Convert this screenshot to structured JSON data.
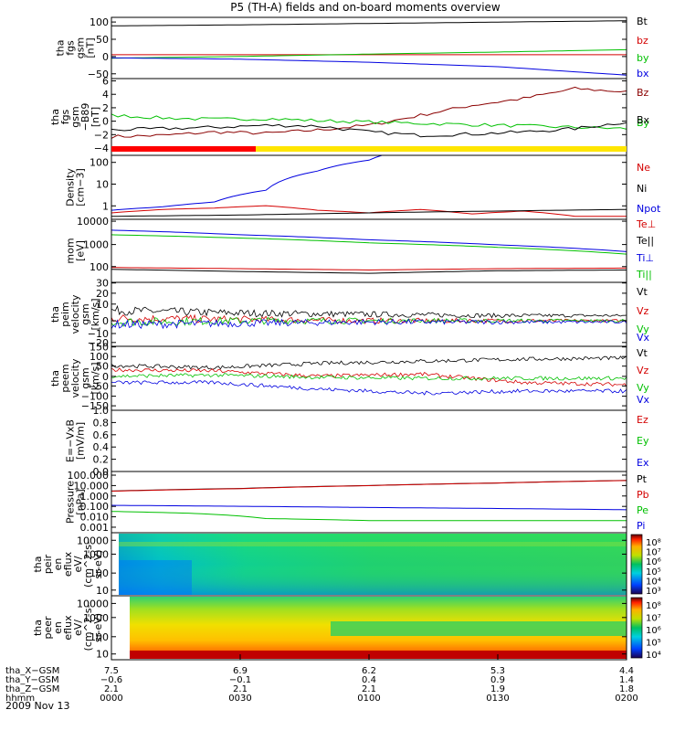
{
  "title": "P5 (TH-A) fields and on-board moments overview",
  "date_label": "2009 Nov 13",
  "colors": {
    "black": "#000000",
    "red": "#d40000",
    "green": "#00c000",
    "blue": "#0000e0",
    "darkred": "#8b0000",
    "yellow": "#ffe600",
    "brightred": "#ff0000"
  },
  "chart_data": [
    {
      "type": "line",
      "panel": "fgs-gsm",
      "ylabel": [
        "tha",
        "fgs",
        "gsm",
        "[nT]"
      ],
      "ylim": [
        -70,
        110
      ],
      "yticks": [
        "100",
        "50",
        "0",
        "−50"
      ],
      "series": [
        {
          "name": "Bt",
          "color": "black",
          "x": [
            0,
            0.25,
            0.5,
            0.75,
            1
          ],
          "y": [
            85,
            88,
            92,
            96,
            100
          ]
        },
        {
          "name": "bz",
          "color": "red",
          "x": [
            0,
            0.5,
            1
          ],
          "y": [
            0,
            0,
            0
          ]
        },
        {
          "name": "by",
          "color": "green",
          "x": [
            0,
            0.25,
            0.5,
            0.75,
            1
          ],
          "y": [
            -10,
            -5,
            2,
            8,
            15
          ]
        },
        {
          "name": "bx",
          "color": "blue",
          "x": [
            0,
            0.25,
            0.5,
            0.75,
            1
          ],
          "y": [
            -9,
            -13,
            -22,
            -35,
            -60
          ]
        }
      ]
    },
    {
      "type": "line",
      "panel": "fgs-gsm-b89",
      "ylabel": [
        "tha",
        "fgs",
        "gsm",
        "−B89",
        "[nT]"
      ],
      "ylim": [
        -5,
        6.5
      ],
      "yticks": [
        "6",
        "4",
        "2",
        "0",
        "−2",
        "−4"
      ],
      "series": [
        {
          "name": "Bz",
          "color": "darkred",
          "x": [
            0,
            0.1,
            0.2,
            0.3,
            0.4,
            0.5,
            0.6,
            0.7,
            0.8,
            0.9,
            1
          ],
          "y": [
            -2.2,
            -2,
            -1.5,
            -1.7,
            -1.2,
            -0.5,
            1,
            2.5,
            3.5,
            5,
            4.5
          ]
        },
        {
          "name": "By",
          "color": "green",
          "x": [
            0,
            0.1,
            0.2,
            0.3,
            0.4,
            0.5,
            0.6,
            0.7,
            0.8,
            0.9,
            1
          ],
          "y": [
            1,
            0.6,
            0.4,
            0.5,
            0.2,
            0,
            -0.2,
            -0.4,
            -0.6,
            -0.8,
            -1
          ]
        },
        {
          "name": "Bx",
          "color": "black",
          "x": [
            0,
            0.1,
            0.2,
            0.3,
            0.4,
            0.5,
            0.6,
            0.7,
            0.8,
            0.9,
            1
          ],
          "y": [
            -1.2,
            -1,
            -0.8,
            -0.5,
            -0.6,
            -1.5,
            -2,
            -1.8,
            -1.5,
            -1,
            0
          ]
        }
      ]
    },
    {
      "type": "line",
      "panel": "density",
      "log": true,
      "ylabel": [
        "Density",
        "[cm−3]"
      ],
      "ylim": [
        0.7,
        150
      ],
      "yticks": [
        "100",
        "10",
        "1"
      ],
      "series": [
        {
          "name": "Ne",
          "color": "red",
          "x": [
            0,
            0.1,
            0.2,
            0.3,
            0.4,
            0.5,
            0.6,
            0.7,
            0.8,
            0.9,
            1
          ],
          "y": [
            1.2,
            1.6,
            1.8,
            2.2,
            1.5,
            1.2,
            1.6,
            1.1,
            1.4,
            0.9,
            0.9
          ]
        },
        {
          "name": "Ni",
          "color": "black",
          "x": [
            0,
            0.25,
            0.5,
            0.75,
            1
          ],
          "y": [
            0.9,
            1,
            1.2,
            1.4,
            1.6
          ]
        },
        {
          "name": "Npot",
          "color": "blue",
          "x": [
            0,
            0.1,
            0.2,
            0.3,
            0.4,
            0.5,
            0.55
          ],
          "y": [
            1.5,
            2,
            3,
            8,
            40,
            100,
            200
          ]
        }
      ]
    },
    {
      "type": "line",
      "panel": "temperature",
      "log": true,
      "ylabel": [
        "mom",
        "[eV]"
      ],
      "ylim": [
        20,
        12000
      ],
      "yticks": [
        "10000",
        "1000",
        "100"
      ],
      "series": [
        {
          "name": "Te⊥",
          "color": "red",
          "x": [
            0,
            0.25,
            0.5,
            0.75,
            1
          ],
          "y": [
            90,
            80,
            70,
            80,
            85
          ]
        },
        {
          "name": "Te||",
          "color": "black",
          "x": [
            0,
            0.25,
            0.5,
            0.75,
            1
          ],
          "y": [
            75,
            60,
            50,
            65,
            70
          ]
        },
        {
          "name": "Ti⊥",
          "color": "blue",
          "x": [
            0,
            0.25,
            0.5,
            0.75,
            1
          ],
          "y": [
            4000,
            2500,
            1500,
            900,
            450
          ]
        },
        {
          "name": "Ti||",
          "color": "green",
          "x": [
            0,
            0.25,
            0.5,
            0.75,
            1
          ],
          "y": [
            2500,
            1800,
            1100,
            700,
            350
          ]
        }
      ]
    },
    {
      "type": "line",
      "panel": "peim-velocity",
      "ylabel": [
        "tha",
        "peim",
        "velocity",
        "gsm",
        "[km/s]"
      ],
      "ylim": [
        -20,
        30
      ],
      "yticks": [
        "30",
        "20",
        "10",
        "0",
        "−10",
        "−20"
      ],
      "series": [
        {
          "name": "Vt",
          "color": "black",
          "x": [
            0,
            0.25,
            0.5,
            0.75,
            1
          ],
          "y": [
            8,
            6,
            5,
            4,
            4
          ]
        },
        {
          "name": "Vz",
          "color": "red",
          "x": [
            0,
            0.25,
            0.5,
            0.75,
            1
          ],
          "y": [
            2,
            1,
            0,
            0,
            0
          ]
        },
        {
          "name": "Vy",
          "color": "green",
          "x": [
            0,
            0.25,
            0.5,
            0.75,
            1
          ],
          "y": [
            -1,
            0,
            0,
            0,
            0
          ]
        },
        {
          "name": "Vx",
          "color": "blue",
          "x": [
            0,
            0.25,
            0.5,
            0.75,
            1
          ],
          "y": [
            -3,
            -2,
            -1,
            -1,
            -1
          ]
        }
      ]
    },
    {
      "type": "line",
      "panel": "peem-velocity",
      "ylabel": [
        "tha",
        "peem",
        "velocity",
        "gsm",
        "[km/s]"
      ],
      "ylim": [
        -150,
        150
      ],
      "yticks": [
        "150",
        "100",
        "50",
        "0",
        "−50",
        "−100",
        "−150"
      ],
      "series": [
        {
          "name": "Vt",
          "color": "black",
          "x": [
            0,
            0.2,
            0.4,
            0.6,
            0.8,
            1
          ],
          "y": [
            60,
            50,
            70,
            80,
            90,
            95
          ]
        },
        {
          "name": "Vz",
          "color": "red",
          "x": [
            0,
            0.2,
            0.4,
            0.6,
            0.8,
            1
          ],
          "y": [
            40,
            35,
            10,
            20,
            -20,
            -30
          ]
        },
        {
          "name": "Vy",
          "color": "green",
          "x": [
            0,
            0.2,
            0.4,
            0.6,
            0.8,
            1
          ],
          "y": [
            10,
            15,
            5,
            0,
            0,
            0
          ]
        },
        {
          "name": "Vx",
          "color": "blue",
          "x": [
            0,
            0.2,
            0.4,
            0.6,
            0.8,
            1
          ],
          "y": [
            -20,
            -20,
            -50,
            -70,
            -60,
            -60
          ]
        }
      ]
    },
    {
      "type": "line",
      "panel": "e-vxb",
      "ylabel": [
        "E=−VxB",
        "[mV/m]"
      ],
      "ylim": [
        0,
        1
      ],
      "yticks": [
        "1.0",
        "0.8",
        "0.6",
        "0.4",
        "0.2",
        "0.0"
      ],
      "series": [
        {
          "name": "Ez",
          "color": "red",
          "x": [],
          "y": []
        },
        {
          "name": "Ey",
          "color": "green",
          "x": [],
          "y": []
        },
        {
          "name": "Ex",
          "color": "blue",
          "x": [],
          "y": []
        }
      ]
    },
    {
      "type": "line",
      "panel": "pressure",
      "log": true,
      "ylabel": [
        "Pressure",
        "[nPa]"
      ],
      "ylim": [
        0.0007,
        150
      ],
      "yticks": [
        "100.000",
        "10.000",
        "1.000",
        "0.100",
        "0.010",
        "0.001"
      ],
      "series": [
        {
          "name": "Pt",
          "color": "black",
          "x": [
            0,
            0.25,
            0.5,
            0.75,
            1
          ],
          "y": [
            3,
            5,
            9,
            15,
            25
          ]
        },
        {
          "name": "Pb",
          "color": "red",
          "x": [
            0,
            0.25,
            0.5,
            0.75,
            1
          ],
          "y": [
            2.9,
            4.8,
            8.8,
            14.8,
            24.5
          ]
        },
        {
          "name": "Pe",
          "color": "green",
          "x": [
            0,
            0.15,
            0.3,
            0.5,
            0.75,
            1
          ],
          "y": [
            0.05,
            0.035,
            0.012,
            0.008,
            0.008,
            0.008
          ]
        },
        {
          "name": "Pi",
          "color": "blue",
          "x": [
            0,
            0.25,
            0.5,
            0.75,
            1
          ],
          "y": [
            0.17,
            0.14,
            0.11,
            0.09,
            0.07
          ]
        }
      ]
    },
    {
      "type": "heatmap",
      "panel": "peir-en-eflux",
      "ylabel": [
        "tha",
        "peir",
        "en",
        "eflux",
        "eV/",
        "(cm^2-s-",
        "sr-eV)"
      ],
      "ylim": [
        10,
        20000
      ],
      "yticks": [
        "10000",
        "1000",
        "100",
        "10"
      ],
      "colorbar_ticks": [
        "10⁸",
        "10⁷",
        "10⁶",
        "10⁵",
        "10⁴",
        "10³"
      ]
    },
    {
      "type": "heatmap",
      "panel": "peer-en-eflux",
      "ylabel": [
        "tha",
        "peer",
        "en",
        "eflux",
        "eV/",
        "(cm^2-s-",
        "sr-eV)"
      ],
      "ylim": [
        10,
        20000
      ],
      "yticks": [
        "10000",
        "1000",
        "100",
        "10"
      ],
      "colorbar_ticks": [
        "10⁸",
        "10⁷",
        "10⁶",
        "10⁵",
        "10⁴"
      ]
    }
  ],
  "x_axis": {
    "rows": [
      {
        "label": "tha_X−GSM",
        "values": [
          "7.5",
          "6.9",
          "6.2",
          "5.3",
          "4.4"
        ]
      },
      {
        "label": "tha_Y−GSM",
        "values": [
          "−0.6",
          "−0.1",
          "0.4",
          "0.9",
          "1.4"
        ]
      },
      {
        "label": "tha_Z−GSM",
        "values": [
          "2.1",
          "2.1",
          "2.1",
          "1.9",
          "1.8"
        ]
      },
      {
        "label": "hhmm",
        "values": [
          "0000",
          "0030",
          "0100",
          "0130",
          "0200"
        ]
      }
    ]
  }
}
